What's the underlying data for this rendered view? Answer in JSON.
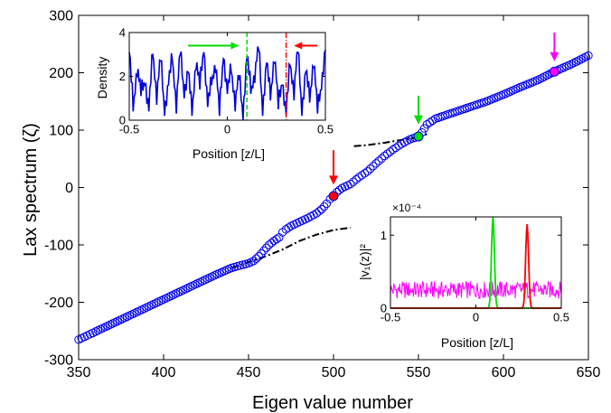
{
  "chart_data": [
    {
      "id": "main",
      "type": "scatter",
      "xlabel": "Eigen value number",
      "ylabel": "Lax spectrum (ζ)",
      "xlim": [
        350,
        650
      ],
      "ylim": [
        -300,
        300
      ],
      "xticks": [
        350,
        400,
        450,
        500,
        550,
        600,
        650
      ],
      "yticks": [
        -300,
        -200,
        -100,
        0,
        100,
        200,
        300
      ],
      "xtick_labels": [
        "350",
        "400",
        "450",
        "500",
        "550",
        "600",
        "650"
      ],
      "ytick_labels": [
        "-300",
        "-200",
        "-100",
        "0",
        "100",
        "200",
        "300"
      ],
      "grid": false,
      "marker_color": "#0000ee",
      "series": [
        {
          "kind": "markers",
          "x": [
            350,
            355,
            360,
            370,
            380,
            390,
            400,
            410,
            420,
            430,
            440,
            445,
            450,
            453,
            456,
            459,
            462,
            465,
            468,
            470,
            472,
            475,
            480,
            485,
            490,
            493,
            496,
            498,
            500,
            502,
            505,
            510,
            515,
            520,
            525,
            530,
            535,
            540,
            545,
            548,
            550,
            552,
            555,
            560,
            570,
            580,
            590,
            600,
            610,
            620,
            630,
            640,
            650
          ],
          "y": [
            -265,
            -258,
            -251,
            -237,
            -223,
            -209,
            -195,
            -181,
            -167,
            -153,
            -140,
            -136,
            -132,
            -128,
            -120,
            -110,
            -100,
            -93,
            -87,
            -78,
            -73,
            -67,
            -60,
            -53,
            -45,
            -38,
            -28,
            -20,
            -15,
            -8,
            -1,
            6,
            18,
            28,
            42,
            55,
            66,
            76,
            84,
            87,
            89,
            96,
            110,
            120,
            130,
            140,
            150,
            162,
            175,
            187,
            202,
            215,
            230
          ]
        },
        {
          "kind": "dashed-fit",
          "color": "#000000",
          "x": [
            440,
            450,
            460,
            470,
            480,
            490,
            500,
            510
          ],
          "y": [
            -140,
            -130,
            -120,
            -108,
            -93,
            -82,
            -74,
            -70
          ]
        },
        {
          "kind": "dashed-fit",
          "color": "#000000",
          "x": [
            512,
            520,
            530,
            540,
            550,
            555
          ],
          "y": [
            72,
            74,
            78,
            83,
            88,
            93
          ]
        }
      ],
      "highlights": [
        {
          "x": 500,
          "y": -15,
          "color": "#ff0000"
        },
        {
          "x": 550,
          "y": 89,
          "color": "#00dd00"
        },
        {
          "x": 630,
          "y": 202,
          "color": "#ff00ff"
        }
      ],
      "arrows": [
        {
          "x": 500,
          "y_from": 65,
          "y_to": 5,
          "color": "#ff0000"
        },
        {
          "x": 550,
          "y_from": 160,
          "y_to": 110,
          "color": "#00dd00"
        },
        {
          "x": 630,
          "y_from": 270,
          "y_to": 220,
          "color": "#ff00ff"
        }
      ]
    },
    {
      "id": "inset-density",
      "type": "line",
      "xlabel": "Position [z/L]",
      "ylabel": "Density",
      "xlim": [
        -0.5,
        0.5
      ],
      "ylim": [
        0,
        4
      ],
      "xticks": [
        -0.5,
        0,
        0.5
      ],
      "yticks": [
        0,
        2,
        4
      ],
      "xtick_labels": [
        "-0.5",
        "0",
        "0.5"
      ],
      "ytick_labels": [
        "0",
        "2",
        "4"
      ],
      "line_color": "#0000dd",
      "x": [
        -0.5,
        -0.48,
        -0.46,
        -0.44,
        -0.42,
        -0.4,
        -0.38,
        -0.36,
        -0.34,
        -0.32,
        -0.3,
        -0.28,
        -0.26,
        -0.24,
        -0.22,
        -0.2,
        -0.18,
        -0.16,
        -0.14,
        -0.12,
        -0.1,
        -0.08,
        -0.06,
        -0.04,
        -0.02,
        0.0,
        0.02,
        0.04,
        0.06,
        0.08,
        0.1,
        0.12,
        0.14,
        0.16,
        0.18,
        0.2,
        0.22,
        0.24,
        0.26,
        0.28,
        0.3,
        0.32,
        0.34,
        0.36,
        0.38,
        0.4,
        0.42,
        0.44,
        0.46,
        0.48,
        0.5
      ],
      "y": [
        3.1,
        0.6,
        2.4,
        1.2,
        1.9,
        0.4,
        3.2,
        1.1,
        2.8,
        0.5,
        1.6,
        2.9,
        0.7,
        3.1,
        1.3,
        2.2,
        0.4,
        2.7,
        1.5,
        3.4,
        0.6,
        1.8,
        2.6,
        0.3,
        3.1,
        1.2,
        2.4,
        0.8,
        2.0,
        0.3,
        2.9,
        1.4,
        2.1,
        3.3,
        0.5,
        2.6,
        1.1,
        3.0,
        0.6,
        1.9,
        0.2,
        2.7,
        1.3,
        3.2,
        0.5,
        2.2,
        1.0,
        2.8,
        0.4,
        1.7,
        3.2
      ],
      "markers": [
        {
          "x": 0.1,
          "color": "#00dd00",
          "style": "dashed"
        },
        {
          "x": 0.3,
          "color": "#ff0000",
          "style": "dash-dot"
        }
      ],
      "arrows": [
        {
          "x_from": -0.2,
          "x_to": 0.06,
          "y": 3.4,
          "color": "#00dd00"
        },
        {
          "x_from": 0.46,
          "x_to": 0.34,
          "y": 3.4,
          "color": "#ff0000"
        }
      ]
    },
    {
      "id": "inset-eigenvector",
      "type": "line",
      "xlabel": "Position [z/L]",
      "ylabel": "|v₁(z)|²",
      "exponent_label": "×10⁻⁴",
      "xlim": [
        -0.5,
        0.5
      ],
      "ylim": [
        0,
        1.25
      ],
      "xticks": [
        -0.5,
        0,
        0.5
      ],
      "yticks": [
        0,
        1
      ],
      "xtick_labels": [
        "-0.5",
        "0",
        "0.5"
      ],
      "ytick_labels": [
        "0",
        "1"
      ],
      "series": [
        {
          "color": "#ff00ff",
          "kind": "noise",
          "level": 0.25,
          "amplitude": 0.12
        },
        {
          "color": "#00dd00",
          "kind": "peak",
          "center": 0.1,
          "height": 1.25,
          "width": 0.012
        },
        {
          "color": "#ff0000",
          "kind": "peak",
          "center": 0.3,
          "height": 1.15,
          "width": 0.012
        }
      ]
    }
  ]
}
